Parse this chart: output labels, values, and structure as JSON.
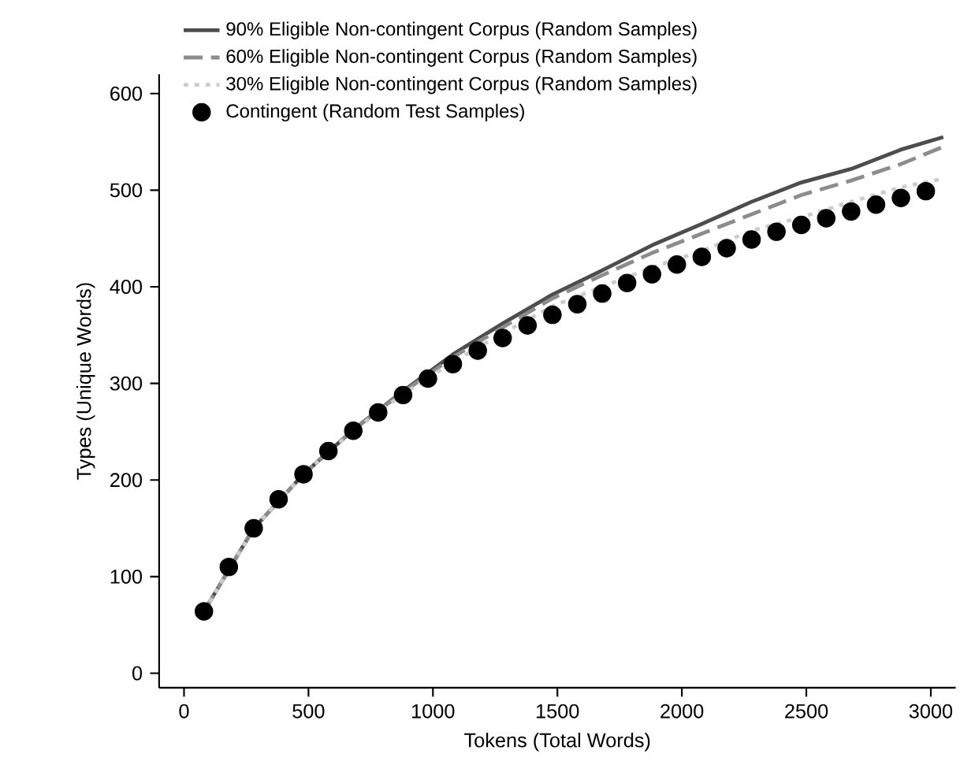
{
  "chart_data": {
    "type": "line",
    "xlabel": "Tokens (Total Words)",
    "ylabel": "Types (Unique Words)",
    "xlim": [
      -100,
      3100
    ],
    "ylim": [
      -15,
      620
    ],
    "xticks": [
      0,
      500,
      1000,
      1500,
      2000,
      2500,
      3000
    ],
    "yticks": [
      0,
      100,
      200,
      300,
      400,
      500,
      600
    ],
    "grid": false,
    "legend": "top left",
    "series": [
      {
        "name": "90% Eligible Non-contingent Corpus (Random Samples)",
        "line_style": "solid",
        "color": "#4d4d4d",
        "x": [
          80,
          280,
          480,
          680,
          880,
          1080,
          1280,
          1480,
          1680,
          1880,
          2080,
          2280,
          2480,
          2680,
          2880,
          3050
        ],
        "values": [
          64,
          150,
          206,
          252,
          292,
          330,
          362,
          392,
          417,
          443,
          465,
          488,
          508,
          522,
          542,
          555
        ]
      },
      {
        "name": "60% Eligible Non-contingent Corpus (Random Samples)",
        "line_style": "dashed",
        "color": "#8c8c8c",
        "x": [
          80,
          280,
          480,
          680,
          880,
          1080,
          1280,
          1480,
          1680,
          1880,
          2080,
          2280,
          2480,
          2680,
          2880,
          3050
        ],
        "values": [
          64,
          150,
          206,
          252,
          291,
          327,
          358,
          388,
          412,
          435,
          455,
          475,
          495,
          510,
          527,
          545
        ]
      },
      {
        "name": "30% Eligible Non-contingent Corpus (Random Samples)",
        "line_style": "dotted",
        "color": "#cccccc",
        "x": [
          80,
          280,
          480,
          680,
          880,
          1080,
          1280,
          1480,
          1680,
          1880,
          2080,
          2280,
          2480,
          2680,
          2880,
          3050
        ],
        "values": [
          64,
          150,
          206,
          251,
          289,
          322,
          352,
          380,
          400,
          420,
          437,
          458,
          472,
          488,
          503,
          512
        ]
      },
      {
        "name": "Contingent (Random Test Samples)",
        "type": "scatter",
        "marker": "circle",
        "color": "#000000",
        "x": [
          80,
          180,
          280,
          380,
          480,
          580,
          680,
          780,
          880,
          980,
          1080,
          1180,
          1280,
          1380,
          1480,
          1580,
          1680,
          1780,
          1880,
          1980,
          2080,
          2180,
          2280,
          2380,
          2480,
          2580,
          2680,
          2780,
          2880,
          2980
        ],
        "values": [
          64,
          110,
          150,
          180,
          206,
          230,
          251,
          270,
          288,
          305,
          320,
          334,
          347,
          360,
          371,
          382,
          393,
          404,
          413,
          423,
          431,
          440,
          449,
          457,
          464,
          471,
          478,
          485,
          492,
          499
        ]
      }
    ]
  }
}
